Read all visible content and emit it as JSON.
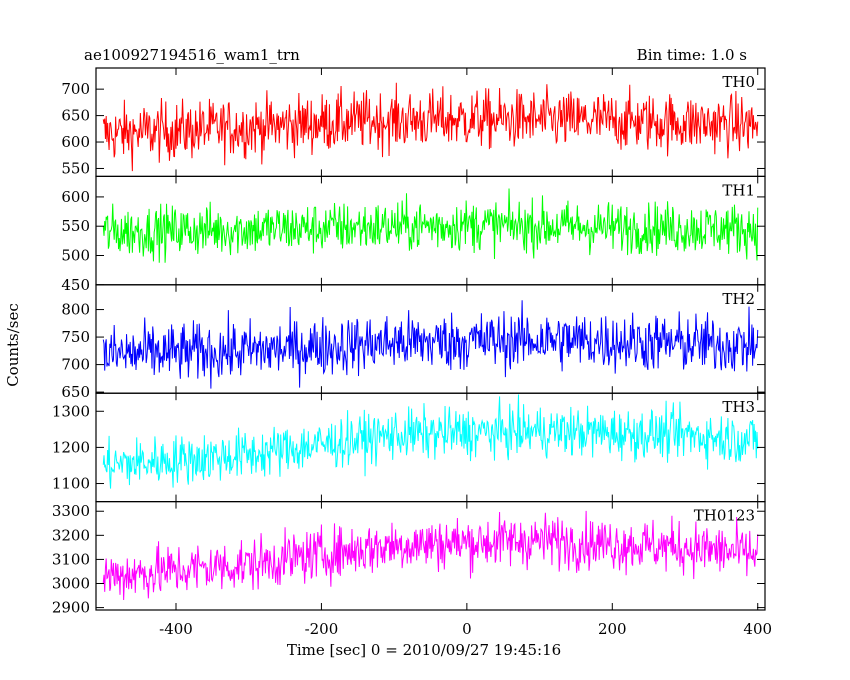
{
  "chart_data": {
    "type": "line",
    "title_left": "ae100927194516_wam1_trn",
    "title_right": "Bin time: 1.0 s",
    "xlabel": "Time [sec] 0 = 2010/09/27 19:45:16",
    "ylabel": "Counts/sec",
    "xlim": [
      -510,
      410
    ],
    "x_ticks": [
      -400,
      -200,
      0,
      200,
      400
    ],
    "grid": false,
    "panels": [
      {
        "name": "TH0",
        "color": "#ff0000",
        "ylim": [
          535,
          740
        ],
        "y_ticks": [
          550,
          600,
          650,
          700
        ],
        "x_range": [
          -500,
          400
        ],
        "trend": [
          [
            -500,
            615
          ],
          [
            -300,
            628
          ],
          [
            -150,
            640
          ],
          [
            0,
            643
          ],
          [
            200,
            640
          ],
          [
            400,
            632
          ]
        ],
        "noise": 28
      },
      {
        "name": "TH1",
        "color": "#00ff00",
        "ylim": [
          450,
          635
        ],
        "y_ticks": [
          450,
          500,
          550,
          600
        ],
        "x_range": [
          -500,
          400
        ],
        "trend": [
          [
            -500,
            540
          ],
          [
            -200,
            547
          ],
          [
            0,
            552
          ],
          [
            200,
            548
          ],
          [
            400,
            545
          ]
        ],
        "noise": 22
      },
      {
        "name": "TH2",
        "color": "#0000ff",
        "ylim": [
          648,
          845
        ],
        "y_ticks": [
          650,
          700,
          750,
          800
        ],
        "x_range": [
          -500,
          400
        ],
        "trend": [
          [
            -500,
            718
          ],
          [
            -300,
            725
          ],
          [
            -100,
            740
          ],
          [
            100,
            745
          ],
          [
            400,
            735
          ]
        ],
        "noise": 27
      },
      {
        "name": "TH3",
        "color": "#00ffff",
        "ylim": [
          1050,
          1350
        ],
        "y_ticks": [
          1100,
          1200,
          1300
        ],
        "x_range": [
          -500,
          400
        ],
        "trend": [
          [
            -500,
            1150
          ],
          [
            -300,
            1180
          ],
          [
            -100,
            1235
          ],
          [
            100,
            1245
          ],
          [
            300,
            1235
          ],
          [
            400,
            1220
          ]
        ],
        "noise": 35
      },
      {
        "name": "TH0123",
        "color": "#ff00ff",
        "ylim": [
          2890,
          3340
        ],
        "y_ticks": [
          2900,
          3000,
          3100,
          3200,
          3300
        ],
        "x_range": [
          -500,
          400
        ],
        "trend": [
          [
            -500,
            3030
          ],
          [
            -300,
            3080
          ],
          [
            -100,
            3160
          ],
          [
            100,
            3180
          ],
          [
            300,
            3150
          ],
          [
            400,
            3120
          ]
        ],
        "noise": 55
      }
    ]
  }
}
